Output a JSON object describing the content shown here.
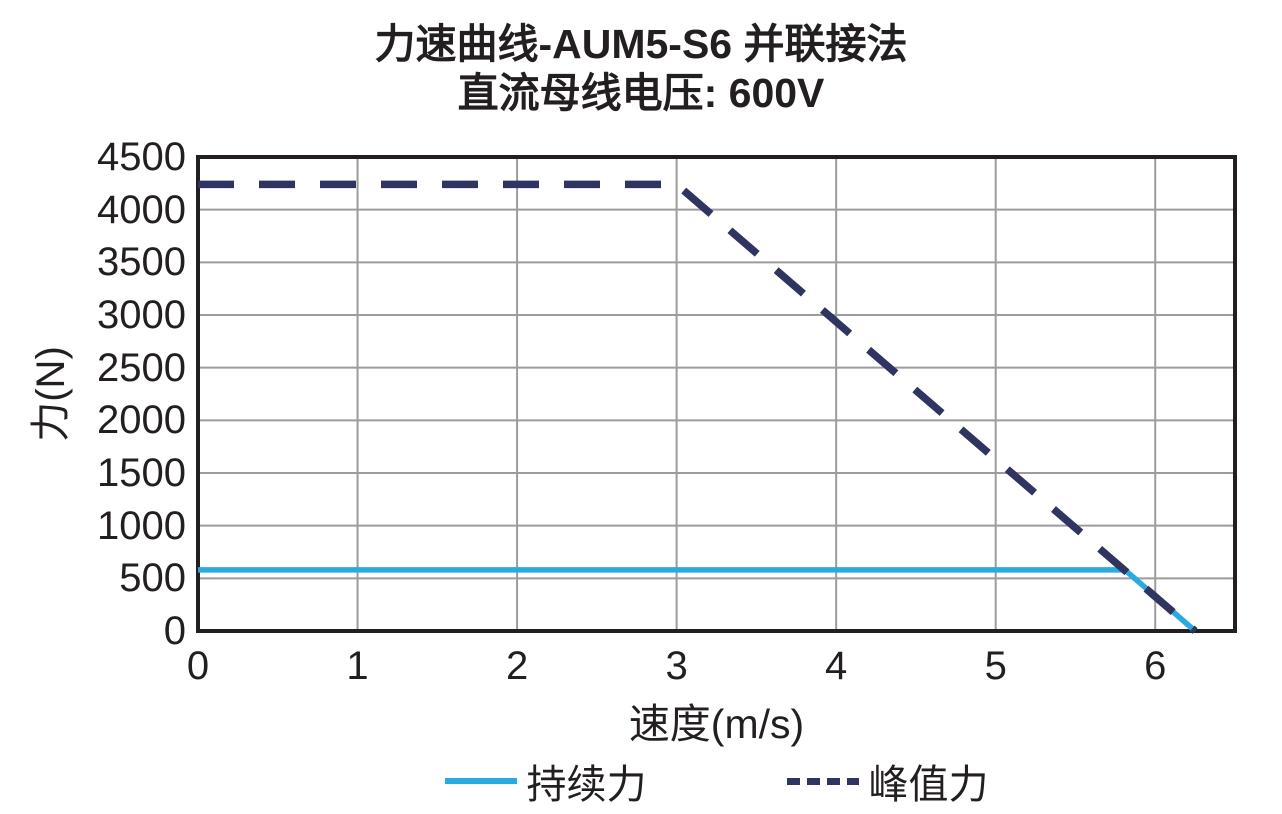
{
  "header": {
    "title": "力速曲线-AUM5-S6 并联接法",
    "subtitle": "直流母线电压: 600V"
  },
  "colors": {
    "continuous_force": "#29abe2",
    "peak_force": "#2f3460",
    "grid": "#9c9c9c",
    "axis_border": "#231f20",
    "text": "#231f20",
    "background": "#ffffff"
  },
  "chart_data": {
    "type": "line",
    "title": "力速曲线-AUM5-S6 并联接法",
    "subtitle": "直流母线电压: 600V",
    "xlabel": "速度(m/s)",
    "ylabel": "力(N)",
    "xlim": [
      0,
      6.5
    ],
    "ylim": [
      0,
      4500
    ],
    "x_ticks": [
      0,
      1,
      2,
      3,
      4,
      5,
      6
    ],
    "y_ticks": [
      0,
      500,
      1000,
      1500,
      2000,
      2500,
      3000,
      3500,
      4000,
      4500
    ],
    "grid": true,
    "legend_position": "bottom",
    "series": [
      {
        "name": "持续力",
        "style": "solid",
        "color": "#29abe2",
        "points": [
          [
            0,
            580
          ],
          [
            5.81,
            580
          ],
          [
            6.25,
            0
          ]
        ]
      },
      {
        "name": "峰值力",
        "style": "dashed",
        "color": "#2f3460",
        "points": [
          [
            0,
            4240
          ],
          [
            3.0,
            4240
          ],
          [
            6.25,
            0
          ]
        ]
      }
    ]
  }
}
